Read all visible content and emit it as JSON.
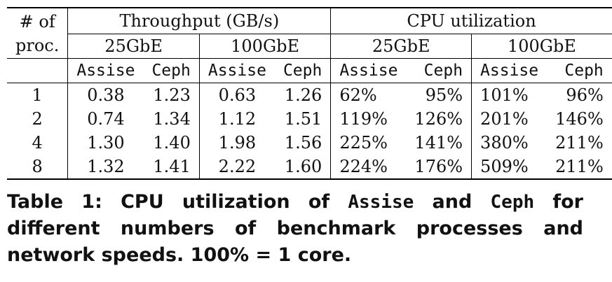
{
  "header": {
    "procs_label_line1": "# of",
    "procs_label_line2": "proc.",
    "group_throughput": "Throughput (GB/s)",
    "group_cpu": "CPU utilization",
    "net_25": "25GbE",
    "net_100": "100GbE",
    "sys_assise": "Assise",
    "sys_ceph": "Ceph"
  },
  "rows": [
    {
      "procs": "1",
      "tp25_assise": "0.38",
      "tp25_ceph": "1.23",
      "tp100_assise": "0.63",
      "tp100_ceph": "1.26",
      "cpu25_assise": "62%",
      "cpu25_ceph": "95%",
      "cpu100_assise": "101%",
      "cpu100_ceph": "96%"
    },
    {
      "procs": "2",
      "tp25_assise": "0.74",
      "tp25_ceph": "1.34",
      "tp100_assise": "1.12",
      "tp100_ceph": "1.51",
      "cpu25_assise": "119%",
      "cpu25_ceph": "126%",
      "cpu100_assise": "201%",
      "cpu100_ceph": "146%"
    },
    {
      "procs": "4",
      "tp25_assise": "1.30",
      "tp25_ceph": "1.40",
      "tp100_assise": "1.98",
      "tp100_ceph": "1.56",
      "cpu25_assise": "225%",
      "cpu25_ceph": "141%",
      "cpu100_assise": "380%",
      "cpu100_ceph": "211%"
    },
    {
      "procs": "8",
      "tp25_assise": "1.32",
      "tp25_ceph": "1.41",
      "tp100_assise": "2.22",
      "tp100_ceph": "1.60",
      "cpu25_assise": "224%",
      "cpu25_ceph": "176%",
      "cpu100_assise": "509%",
      "cpu100_ceph": "211%"
    }
  ],
  "caption": {
    "part1": "Table 1: CPU utilization of ",
    "assise": "Assise",
    "part2": " and ",
    "ceph": "Ceph",
    "part3": " for different numbers of benchmark processes and network speeds. 100% = 1 core."
  }
}
